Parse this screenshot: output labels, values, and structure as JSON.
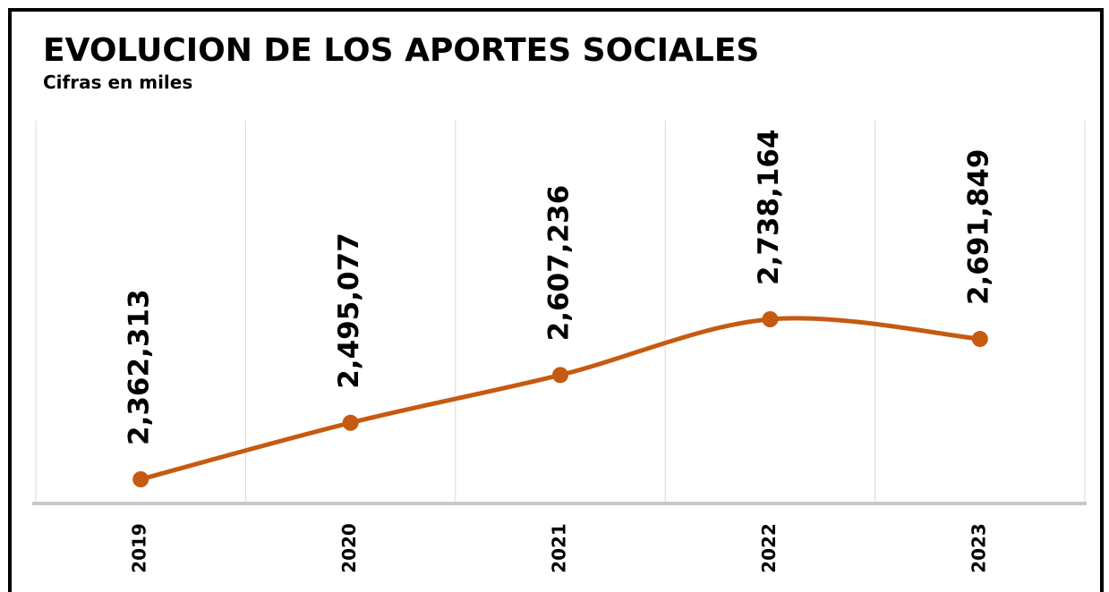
{
  "chart_data": {
    "type": "line",
    "title": "EVOLUCION DE LOS APORTES SOCIALES",
    "subtitle": "Cifras en miles",
    "categories": [
      "2019",
      "2020",
      "2021",
      "2022",
      "2023"
    ],
    "series": [
      {
        "color": "#c55a11",
        "values": [
          2362313,
          2495077,
          2607236,
          2738164,
          2691849
        ],
        "value_labels": [
          "2,362,313",
          "2,495,077",
          "2,607,236",
          "2,738,164",
          "2,691,849"
        ]
      }
    ],
    "grid": true,
    "smooth": true
  }
}
